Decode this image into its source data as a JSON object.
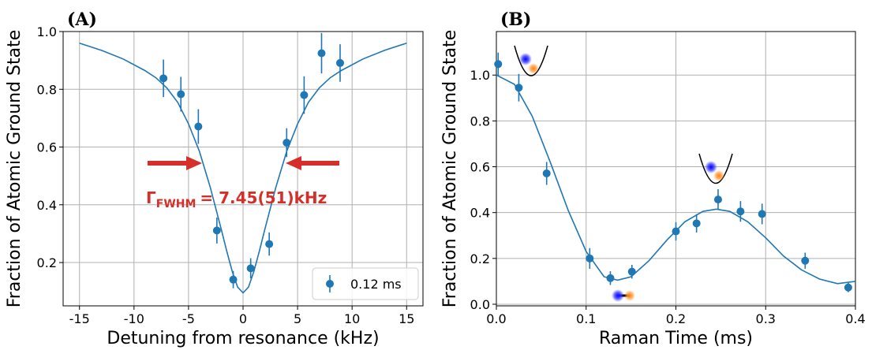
{
  "chart_data": [
    {
      "type": "errorbar",
      "title": "(A)",
      "xlabel": "Detuning from resonance (kHz)",
      "ylabel": "Fraction of Atomic Ground State",
      "xlim": [
        -16.5,
        16.5
      ],
      "ylim": [
        0.05,
        1.0
      ],
      "xticks": [
        -15,
        -10,
        -5,
        0,
        5,
        10,
        15
      ],
      "yticks": [
        0.2,
        0.4,
        0.6,
        0.8,
        {
          "value": 1,
          "label": "1.0"
        }
      ],
      "grid": true,
      "legend": "lower right",
      "annotation": {
        "symbol": "Γ",
        "subscript": "FWHM",
        "text": "= 7.45(51)kHz",
        "color": "#d62f2a"
      },
      "series": [
        {
          "name": "0.12 ms",
          "kind": "errorbar",
          "color": "#1f77b4",
          "x": [
            -7.3,
            -5.7,
            -4.1,
            -2.4,
            -0.9,
            0.7,
            2.4,
            4.0,
            5.6,
            7.2,
            8.9
          ],
          "values": [
            0.838,
            0.783,
            0.671,
            0.311,
            0.141,
            0.18,
            0.264,
            0.615,
            0.78,
            0.925,
            0.891
          ],
          "errors": [
            0.065,
            0.06,
            0.06,
            0.045,
            0.03,
            0.035,
            0.04,
            0.05,
            0.065,
            0.07,
            0.065
          ]
        },
        {
          "kind": "line",
          "color": "#1f77b4",
          "x": [
            -15,
            -13,
            -11,
            -9,
            -8,
            -7,
            -6,
            -5,
            -4,
            -3,
            -2,
            -1.5,
            -1,
            -0.5,
            0,
            0.5,
            1,
            1.5,
            2,
            3,
            4,
            5,
            6,
            7,
            8,
            9,
            11,
            13,
            15
          ],
          "values": [
            0.96,
            0.935,
            0.905,
            0.865,
            0.84,
            0.805,
            0.755,
            0.68,
            0.585,
            0.46,
            0.315,
            0.24,
            0.17,
            0.115,
            0.095,
            0.115,
            0.17,
            0.24,
            0.315,
            0.46,
            0.585,
            0.68,
            0.755,
            0.805,
            0.84,
            0.865,
            0.905,
            0.935,
            0.96
          ]
        }
      ]
    },
    {
      "type": "errorbar",
      "title": "(B)",
      "xlabel": "Raman Time (ms)",
      "ylabel": "Fraction of Atomic Ground State",
      "xlim": [
        0,
        0.4
      ],
      "ylim": [
        -0.007,
        1.19
      ],
      "xticks": [
        {
          "value": 0,
          "label": "0.0"
        },
        0.1,
        0.2,
        0.3,
        0.4
      ],
      "yticks": [
        {
          "value": 0,
          "label": "0.0"
        },
        0.2,
        0.4,
        0.6,
        0.8,
        {
          "value": 1,
          "label": "1.0"
        }
      ],
      "grid": true,
      "series": [
        {
          "kind": "errorbar",
          "color": "#1f77b4",
          "x": [
            0.002,
            0.025,
            0.056,
            0.104,
            0.127,
            0.151,
            0.2,
            0.223,
            0.247,
            0.272,
            0.296,
            0.344,
            0.392
          ],
          "values": [
            1.048,
            0.945,
            0.571,
            0.2,
            0.114,
            0.142,
            0.318,
            0.353,
            0.457,
            0.405,
            0.394,
            0.19,
            0.073
          ],
          "errors": [
            0.05,
            0.06,
            0.05,
            0.045,
            0.03,
            0.03,
            0.04,
            0.04,
            0.045,
            0.045,
            0.045,
            0.035,
            0.02
          ]
        },
        {
          "kind": "line",
          "color": "#1f77b4",
          "x": [
            0,
            0.02,
            0.04,
            0.06,
            0.08,
            0.1,
            0.12,
            0.135,
            0.15,
            0.17,
            0.19,
            0.21,
            0.23,
            0.245,
            0.26,
            0.28,
            0.3,
            0.32,
            0.34,
            0.36,
            0.38,
            0.4
          ],
          "values": [
            1.0,
            0.96,
            0.82,
            0.62,
            0.41,
            0.23,
            0.12,
            0.105,
            0.12,
            0.19,
            0.28,
            0.36,
            0.405,
            0.415,
            0.405,
            0.36,
            0.29,
            0.21,
            0.15,
            0.11,
            0.09,
            0.1
          ]
        }
      ]
    }
  ]
}
